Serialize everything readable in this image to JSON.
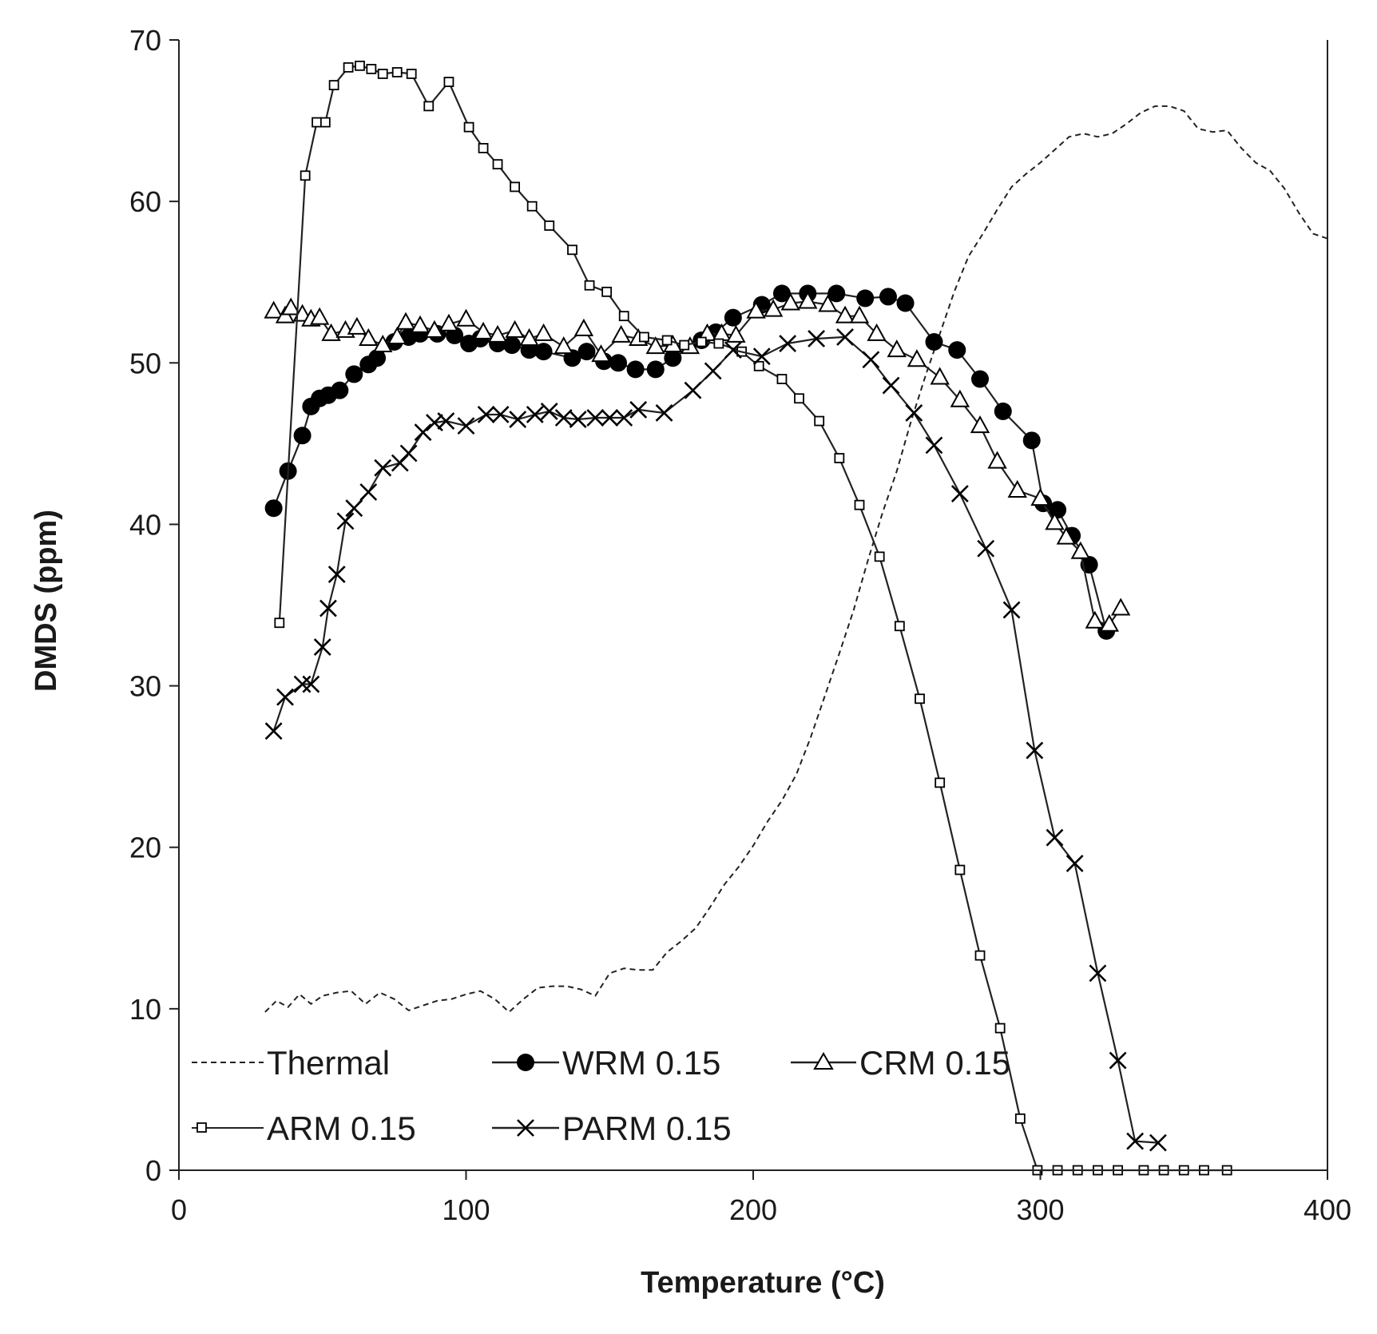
{
  "chart_data": {
    "type": "line",
    "title": "",
    "xlabel": "Temperature (°C)",
    "ylabel": "DMDS (ppm)",
    "xlim": [
      0,
      400
    ],
    "ylim": [
      0,
      70
    ],
    "x_ticks": [
      0,
      100,
      200,
      300,
      400
    ],
    "y_ticks": [
      0,
      10,
      20,
      30,
      40,
      50,
      60,
      70
    ],
    "grid": false,
    "legend_position": "bottom-left",
    "series": [
      {
        "name": "Thermal",
        "marker": "none",
        "line": "dashed",
        "x": [
          30,
          34,
          38,
          42,
          46,
          50,
          55,
          60,
          65,
          70,
          75,
          80,
          85,
          90,
          95,
          100,
          105,
          110,
          115,
          120,
          125,
          130,
          135,
          140,
          145,
          150,
          155,
          160,
          165,
          170,
          175,
          180,
          185,
          190,
          195,
          200,
          205,
          210,
          215,
          220,
          225,
          230,
          235,
          240,
          245,
          250,
          255,
          260,
          265,
          270,
          275,
          280,
          285,
          290,
          295,
          300,
          305,
          310,
          315,
          320,
          325,
          330,
          335,
          340,
          345,
          350,
          355,
          360,
          365,
          370,
          375,
          380,
          385,
          390,
          395,
          400
        ],
        "y": [
          9.8,
          10.5,
          10.1,
          10.9,
          10.3,
          10.8,
          11.0,
          11.1,
          10.3,
          11.0,
          10.6,
          9.9,
          10.2,
          10.5,
          10.6,
          10.9,
          11.1,
          10.6,
          9.8,
          10.6,
          11.3,
          11.4,
          11.4,
          11.2,
          10.8,
          12.2,
          12.5,
          12.4,
          12.4,
          13.5,
          14.2,
          15.0,
          16.3,
          17.7,
          18.8,
          20.1,
          21.6,
          22.9,
          24.5,
          26.8,
          29.4,
          32.0,
          34.7,
          37.8,
          40.7,
          43.3,
          46.4,
          49.2,
          51.8,
          54.4,
          56.6,
          58.0,
          59.5,
          60.9,
          61.7,
          62.4,
          63.2,
          64.0,
          64.2,
          64.0,
          64.2,
          64.8,
          65.5,
          65.9,
          65.9,
          65.6,
          64.5,
          64.3,
          64.4,
          63.3,
          62.4,
          61.9,
          60.8,
          59.3,
          58.0,
          57.7
        ]
      },
      {
        "name": "WRM 0.15",
        "marker": "filled-circle",
        "line": "solid",
        "x": [
          33,
          38,
          43,
          46,
          49,
          52,
          56,
          61,
          66,
          69,
          75,
          80,
          84,
          90,
          96,
          101,
          105,
          111,
          116,
          122,
          127,
          137,
          142,
          148,
          153,
          159,
          166,
          172,
          182,
          187,
          193,
          203,
          210,
          219,
          229,
          239,
          247,
          253,
          263,
          271,
          279,
          287,
          297,
          301,
          306,
          311,
          317,
          323
        ],
        "y": [
          41.0,
          43.3,
          45.5,
          47.3,
          47.8,
          48.0,
          48.3,
          49.3,
          49.9,
          50.3,
          51.3,
          51.6,
          51.8,
          51.8,
          51.7,
          51.2,
          51.5,
          51.2,
          51.1,
          50.8,
          50.7,
          50.3,
          50.7,
          50.1,
          50.0,
          49.6,
          49.6,
          50.3,
          51.4,
          51.9,
          52.8,
          53.6,
          54.3,
          54.3,
          54.3,
          54.0,
          54.1,
          53.7,
          51.3,
          50.8,
          49.0,
          47.0,
          45.2,
          41.3,
          40.9,
          39.3,
          37.5,
          33.4
        ]
      },
      {
        "name": "CRM 0.15",
        "marker": "open-triangle",
        "line": "solid",
        "x": [
          33,
          37,
          39,
          43,
          46,
          49,
          53,
          58,
          62,
          66,
          71,
          76,
          79,
          84,
          89,
          94,
          100,
          106,
          111,
          117,
          122,
          127,
          134,
          141,
          147,
          154,
          160,
          166,
          172,
          178,
          184,
          189,
          194,
          201,
          207,
          213,
          219,
          226,
          232,
          237,
          243,
          250,
          257,
          265,
          272,
          279,
          285,
          292,
          300,
          305,
          309,
          314,
          319,
          324,
          328
        ],
        "y": [
          53.2,
          52.9,
          53.4,
          53.0,
          52.7,
          52.8,
          51.8,
          52.0,
          52.2,
          51.5,
          51.1,
          51.6,
          52.5,
          52.3,
          52.0,
          52.4,
          52.7,
          51.9,
          51.7,
          52.0,
          51.5,
          51.8,
          51.0,
          52.1,
          50.5,
          51.7,
          51.5,
          51.0,
          51.1,
          51.0,
          51.8,
          51.8,
          51.7,
          53.2,
          53.3,
          53.7,
          53.8,
          53.6,
          52.9,
          52.9,
          51.8,
          50.8,
          50.2,
          49.1,
          47.7,
          46.1,
          43.9,
          42.1,
          41.6,
          40.1,
          39.2,
          38.3,
          34.0,
          33.8,
          34.8
        ]
      },
      {
        "name": "ARM 0.15",
        "marker": "open-square",
        "line": "solid",
        "x": [
          35,
          44,
          48,
          51,
          54,
          59,
          63,
          67,
          71,
          76,
          81,
          87,
          94,
          101,
          106,
          111,
          117,
          123,
          129,
          137,
          143,
          149,
          155,
          162,
          170,
          176,
          182,
          188,
          196,
          202,
          210,
          216,
          223,
          230,
          237,
          244,
          251,
          258,
          265,
          272,
          279,
          286,
          293,
          299,
          306,
          313,
          320,
          327,
          336,
          343,
          350,
          357,
          365
        ],
        "y": [
          33.9,
          61.6,
          64.9,
          64.9,
          67.2,
          68.3,
          68.4,
          68.2,
          67.9,
          68.0,
          67.9,
          65.9,
          67.4,
          64.6,
          63.3,
          62.3,
          60.9,
          59.7,
          58.5,
          57.0,
          54.8,
          54.4,
          52.9,
          51.6,
          51.4,
          51.1,
          51.3,
          51.2,
          50.7,
          49.8,
          49.0,
          47.8,
          46.4,
          44.1,
          41.2,
          38.0,
          33.7,
          29.2,
          24.0,
          18.6,
          13.3,
          8.8,
          3.2,
          0,
          0,
          0,
          0,
          0,
          0,
          0,
          0,
          0,
          0
        ]
      },
      {
        "name": "PARM 0.15",
        "marker": "x",
        "line": "solid",
        "x": [
          33,
          37,
          43,
          46,
          50,
          52,
          55,
          58,
          61,
          66,
          71,
          77,
          80,
          85,
          89,
          93,
          100,
          107,
          112,
          118,
          124,
          129,
          134,
          139,
          145,
          150,
          155,
          160,
          169,
          179,
          186,
          193,
          203,
          212,
          222,
          232,
          241,
          248,
          256,
          263,
          272,
          281,
          290,
          298,
          305,
          312,
          320,
          327,
          333,
          341
        ],
        "y": [
          27.2,
          29.3,
          30.1,
          30.1,
          32.4,
          34.8,
          36.9,
          40.2,
          41.0,
          42.0,
          43.5,
          43.8,
          44.4,
          45.7,
          46.3,
          46.4,
          46.1,
          46.8,
          46.8,
          46.5,
          46.8,
          47.0,
          46.6,
          46.5,
          46.6,
          46.6,
          46.6,
          47.1,
          46.9,
          48.3,
          49.5,
          50.8,
          50.4,
          51.2,
          51.5,
          51.6,
          50.2,
          48.6,
          46.9,
          44.9,
          41.9,
          38.5,
          34.7,
          26.0,
          20.6,
          19.0,
          12.2,
          6.8,
          1.8,
          1.7
        ]
      }
    ]
  }
}
